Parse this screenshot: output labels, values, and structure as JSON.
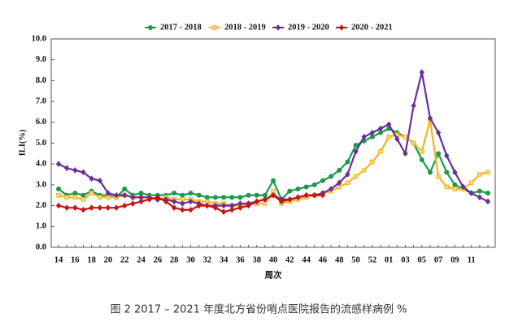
{
  "chart_data": {
    "type": "line",
    "caption": "图 2 2017 – 2021 年度北方省份哨点医院报告的流感样病例 %",
    "y_label": "ILI(%)",
    "x_label": "周次",
    "categories": [
      "14",
      null,
      "16",
      null,
      "18",
      null,
      "20",
      null,
      "22",
      null,
      "24",
      null,
      "26",
      null,
      "28",
      null,
      "30",
      null,
      "32",
      null,
      "34",
      null,
      "36",
      null,
      "38",
      null,
      "40",
      null,
      "42",
      null,
      "44",
      null,
      "46",
      null,
      "48",
      null,
      "50",
      null,
      "52",
      null,
      "01",
      null,
      "03",
      null,
      "05",
      null,
      "07",
      null,
      "09",
      null,
      "11",
      null,
      null
    ],
    "ylim": [
      0,
      10
    ],
    "yticks": [
      {
        "value": 0,
        "label": "0.0"
      },
      {
        "value": 1,
        "label": "1.0"
      },
      {
        "value": 2,
        "label": "2.0"
      },
      {
        "value": 3,
        "label": "3.0"
      },
      {
        "value": 4,
        "label": "4.0"
      },
      {
        "value": 5,
        "label": "5.0"
      },
      {
        "value": 6,
        "label": "6.0"
      },
      {
        "value": 7,
        "label": "7.0"
      },
      {
        "value": 8,
        "label": "8.0"
      },
      {
        "value": 9,
        "label": "9.0"
      },
      {
        "value": 10,
        "label": "10.0"
      }
    ],
    "grid": false,
    "legend": "top",
    "series": [
      {
        "name": "2017 - 2018",
        "color": "#1a9a4a",
        "marker": "circle",
        "values": [
          2.8,
          2.5,
          2.6,
          2.5,
          2.7,
          2.5,
          2.5,
          2.4,
          2.8,
          2.5,
          2.6,
          2.5,
          2.5,
          2.5,
          2.6,
          2.5,
          2.6,
          2.5,
          2.4,
          2.4,
          2.4,
          2.4,
          2.4,
          2.5,
          2.5,
          2.5,
          3.2,
          2.3,
          2.7,
          2.8,
          2.9,
          3.0,
          3.2,
          3.4,
          3.7,
          4.1,
          4.9,
          5.1,
          5.3,
          5.5,
          5.7,
          5.5,
          5.3,
          5.0,
          4.2,
          3.6,
          4.5,
          3.6,
          3.0,
          2.8,
          2.6,
          2.7,
          2.6
        ]
      },
      {
        "name": "2018 - 2019",
        "color": "#f2b51c",
        "marker": "square",
        "values": [
          2.5,
          2.4,
          2.4,
          2.3,
          2.6,
          2.4,
          2.4,
          2.4,
          2.5,
          2.4,
          2.4,
          2.4,
          2.3,
          2.4,
          2.3,
          2.3,
          2.3,
          2.2,
          2.2,
          2.1,
          2.1,
          2.0,
          2.0,
          2.1,
          2.1,
          2.1,
          2.7,
          2.1,
          2.2,
          2.3,
          2.4,
          2.5,
          2.6,
          2.7,
          2.9,
          3.1,
          3.4,
          3.7,
          4.1,
          4.6,
          5.3,
          5.4,
          5.3,
          5.0,
          4.6,
          6.1,
          3.4,
          2.9,
          2.8,
          2.8,
          3.1,
          3.5,
          3.6
        ]
      },
      {
        "name": "2019 - 2020",
        "color": "#6a2e9a",
        "marker": "diamond",
        "values": [
          4.0,
          3.8,
          3.7,
          3.6,
          3.3,
          3.2,
          2.6,
          2.5,
          2.5,
          2.4,
          2.4,
          2.4,
          2.3,
          2.3,
          2.2,
          2.1,
          2.2,
          2.1,
          2.0,
          2.0,
          2.0,
          2.0,
          2.1,
          2.1,
          2.2,
          2.3,
          2.5,
          2.3,
          2.3,
          2.4,
          2.5,
          2.5,
          2.6,
          2.8,
          3.1,
          3.5,
          4.6,
          5.3,
          5.5,
          5.7,
          5.9,
          5.2,
          4.5,
          6.8,
          8.4,
          6.2,
          5.5,
          4.4,
          3.6,
          2.9,
          2.6,
          2.4,
          2.2
        ]
      },
      {
        "name": "2020 - 2021",
        "color": "#c81414",
        "marker": "diamond",
        "values": [
          2.0,
          1.9,
          1.9,
          1.8,
          1.9,
          1.9,
          1.9,
          1.9,
          2.0,
          2.1,
          2.2,
          2.3,
          2.4,
          2.2,
          1.9,
          1.8,
          1.8,
          2.0,
          2.0,
          1.9,
          1.7,
          1.8,
          1.9,
          2.0,
          2.2,
          2.3,
          2.5,
          2.2,
          2.3,
          2.4,
          2.5,
          2.5,
          2.5,
          null,
          null,
          null,
          null,
          null,
          null,
          null,
          null,
          null,
          null,
          null,
          null,
          null,
          null,
          null,
          null,
          null,
          null,
          null,
          null
        ]
      }
    ]
  }
}
